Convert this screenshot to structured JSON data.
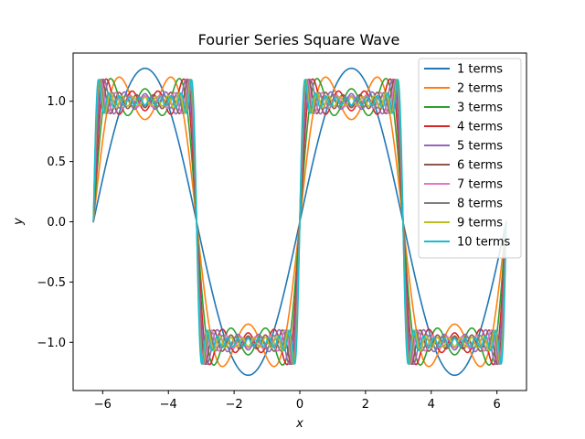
{
  "chart_data": {
    "type": "line",
    "title": "Fourier Series Square Wave",
    "xlabel": "x",
    "ylabel": "y",
    "xlim": [
      -6.9,
      6.9
    ],
    "ylim": [
      -1.4,
      1.4
    ],
    "x_range": [
      -6.283185,
      6.283185
    ],
    "x_ticks": [
      -6,
      -4,
      -2,
      0,
      2,
      4,
      6
    ],
    "x_tick_labels": [
      "−6",
      "−4",
      "−2",
      "0",
      "2",
      "4",
      "6"
    ],
    "y_ticks": [
      -1.0,
      -0.5,
      0.0,
      0.5,
      1.0
    ],
    "y_tick_labels": [
      "−1.0",
      "−0.5",
      "0.0",
      "0.5",
      "1.0"
    ],
    "grid": false,
    "legend_position": "top-right",
    "series": [
      {
        "name": "1 terms",
        "terms": 1,
        "color": "#1f77b4"
      },
      {
        "name": "2 terms",
        "terms": 2,
        "color": "#ff7f0e"
      },
      {
        "name": "3 terms",
        "terms": 3,
        "color": "#2ca02c"
      },
      {
        "name": "4 terms",
        "terms": 4,
        "color": "#d62728"
      },
      {
        "name": "5 terms",
        "terms": 5,
        "color": "#9467bd"
      },
      {
        "name": "6 terms",
        "terms": 6,
        "color": "#8c564b"
      },
      {
        "name": "7 terms",
        "terms": 7,
        "color": "#e377c2"
      },
      {
        "name": "8 terms",
        "terms": 8,
        "color": "#7f7f7f"
      },
      {
        "name": "9 terms",
        "terms": 9,
        "color": "#bcbd22"
      },
      {
        "name": "10 terms",
        "terms": 10,
        "color": "#17becf"
      }
    ]
  }
}
